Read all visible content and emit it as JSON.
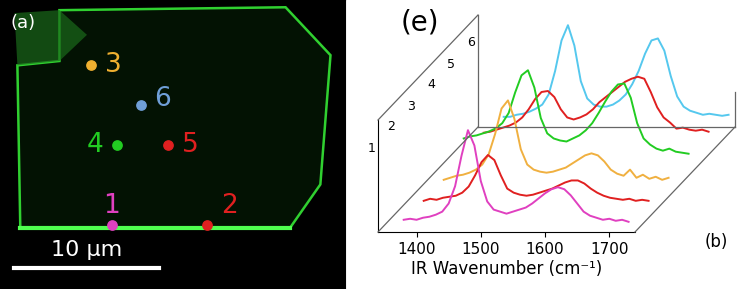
{
  "chart_data": [
    {
      "type": "scatter",
      "title": "(a)",
      "tick_labels": false,
      "xlim": [
        0,
        23.8
      ],
      "ylim": [
        0,
        19.9
      ],
      "scale_bar": {
        "value": 10,
        "label": "10 μm"
      },
      "points": [
        {
          "label": "1",
          "color": "#e040c0",
          "x": 7.7,
          "y": 4.4
        },
        {
          "label": "2",
          "color": "#e02020",
          "x": 14.3,
          "y": 4.4
        },
        {
          "label": "3",
          "color": "#f0b030",
          "x": 6.3,
          "y": 15.4
        },
        {
          "label": "4",
          "color": "#22cc22",
          "x": 8.1,
          "y": 9.9
        },
        {
          "label": "5",
          "color": "#e02020",
          "x": 11.6,
          "y": 9.9
        },
        {
          "label": "6",
          "color": "#6f9fd8",
          "x": 9.7,
          "y": 12.7
        }
      ]
    },
    {
      "type": "line",
      "title": "(e)",
      "annotations": [
        "(b)"
      ],
      "x_label": "IR Wavenumber (cm⁻¹)",
      "tick_labels": "x",
      "xlim": [
        1340,
        1740
      ],
      "xticks": [
        1400,
        1500,
        1600,
        1700
      ],
      "ylim": [
        0,
        1.1
      ],
      "x": [
        1380,
        1390,
        1400,
        1410,
        1420,
        1430,
        1440,
        1450,
        1460,
        1470,
        1480,
        1490,
        1500,
        1510,
        1520,
        1530,
        1540,
        1550,
        1560,
        1570,
        1580,
        1590,
        1600,
        1610,
        1620,
        1630,
        1640,
        1650,
        1660,
        1670,
        1680,
        1690,
        1700,
        1710,
        1720,
        1730
      ],
      "series": [
        {
          "name": "1",
          "color": "#e040c0",
          "values": [
            0.12,
            0.13,
            0.12,
            0.14,
            0.15,
            0.17,
            0.2,
            0.28,
            0.45,
            0.75,
            1.0,
            0.85,
            0.5,
            0.3,
            0.22,
            0.2,
            0.18,
            0.2,
            0.22,
            0.24,
            0.28,
            0.33,
            0.38,
            0.42,
            0.44,
            0.42,
            0.36,
            0.28,
            0.2,
            0.16,
            0.14,
            0.12,
            0.13,
            0.11,
            0.12,
            0.1
          ]
        },
        {
          "name": "2",
          "color": "#e02020",
          "values": [
            0.1,
            0.12,
            0.11,
            0.13,
            0.14,
            0.15,
            0.18,
            0.24,
            0.35,
            0.48,
            0.55,
            0.5,
            0.35,
            0.22,
            0.18,
            0.16,
            0.15,
            0.16,
            0.18,
            0.2,
            0.22,
            0.25,
            0.28,
            0.3,
            0.3,
            0.27,
            0.22,
            0.18,
            0.15,
            0.13,
            0.12,
            0.11,
            0.12,
            0.1,
            0.11,
            0.1
          ]
        },
        {
          "name": "3",
          "color": "#f0b040",
          "values": [
            0.1,
            0.12,
            0.14,
            0.15,
            0.17,
            0.2,
            0.25,
            0.35,
            0.55,
            0.8,
            0.88,
            0.7,
            0.4,
            0.25,
            0.2,
            0.18,
            0.17,
            0.18,
            0.2,
            0.22,
            0.26,
            0.3,
            0.34,
            0.36,
            0.34,
            0.28,
            0.2,
            0.16,
            0.14,
            0.2,
            0.12,
            0.15,
            0.11,
            0.13,
            0.1,
            0.12
          ]
        },
        {
          "name": "4",
          "color": "#22cc22",
          "values": [
            0.3,
            0.32,
            0.33,
            0.35,
            0.37,
            0.4,
            0.45,
            0.55,
            0.75,
            0.92,
            0.97,
            0.8,
            0.5,
            0.35,
            0.3,
            0.28,
            0.27,
            0.3,
            0.33,
            0.38,
            0.45,
            0.55,
            0.66,
            0.76,
            0.83,
            0.84,
            0.7,
            0.45,
            0.3,
            0.24,
            0.2,
            0.18,
            0.2,
            0.17,
            0.16,
            0.15
          ]
        },
        {
          "name": "5",
          "color": "#e02020",
          "values": [
            0.15,
            0.16,
            0.18,
            0.2,
            0.22,
            0.25,
            0.3,
            0.38,
            0.48,
            0.55,
            0.56,
            0.5,
            0.38,
            0.3,
            0.28,
            0.3,
            0.33,
            0.38,
            0.45,
            0.5,
            0.55,
            0.6,
            0.65,
            0.68,
            0.7,
            0.68,
            0.55,
            0.4,
            0.3,
            0.25,
            0.19,
            0.2,
            0.18,
            0.17,
            0.18,
            0.16
          ]
        },
        {
          "name": "6",
          "color": "#55c8ee",
          "values": [
            0.1,
            0.1,
            0.12,
            0.13,
            0.15,
            0.18,
            0.22,
            0.32,
            0.55,
            0.85,
            1.0,
            0.8,
            0.45,
            0.28,
            0.22,
            0.2,
            0.2,
            0.22,
            0.26,
            0.32,
            0.42,
            0.55,
            0.72,
            0.85,
            0.87,
            0.75,
            0.5,
            0.3,
            0.2,
            0.16,
            0.14,
            0.12,
            0.13,
            0.12,
            0.11,
            0.12
          ]
        }
      ]
    }
  ]
}
